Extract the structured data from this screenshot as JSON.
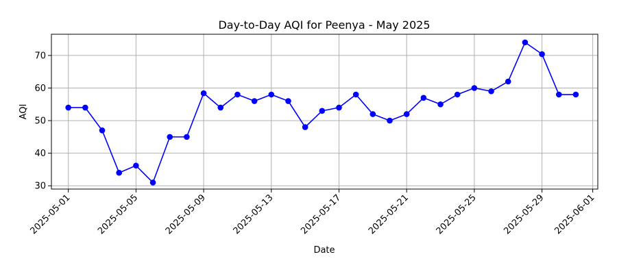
{
  "chart_data": {
    "type": "line",
    "title": "Day-to-Day AQI for Peenya - May 2025",
    "xlabel": "Date",
    "ylabel": "AQI",
    "x": [
      "2025-05-01",
      "2025-05-02",
      "2025-05-03",
      "2025-05-04",
      "2025-05-05",
      "2025-05-06",
      "2025-05-07",
      "2025-05-08",
      "2025-05-09",
      "2025-05-10",
      "2025-05-11",
      "2025-05-12",
      "2025-05-13",
      "2025-05-14",
      "2025-05-15",
      "2025-05-16",
      "2025-05-17",
      "2025-05-18",
      "2025-05-19",
      "2025-05-20",
      "2025-05-21",
      "2025-05-22",
      "2025-05-23",
      "2025-05-24",
      "2025-05-25",
      "2025-05-26",
      "2025-05-27",
      "2025-05-28",
      "2025-05-29",
      "2025-05-30",
      "2025-05-31"
    ],
    "series": [
      {
        "values": [
          54,
          54,
          47,
          34,
          36.2,
          31,
          45,
          45,
          58.4,
          54,
          58,
          56,
          58,
          56,
          48,
          53,
          54,
          58,
          52,
          50,
          52,
          57,
          55,
          58,
          60,
          59,
          62,
          74,
          70.4,
          58,
          58
        ],
        "color": "#0000ff",
        "marker": "circle"
      }
    ],
    "xlim": [
      "2025-04-30",
      "2025-06-01"
    ],
    "ylim": [
      29,
      76.5
    ],
    "x_ticks": [
      "2025-05-01",
      "2025-05-05",
      "2025-05-09",
      "2025-05-13",
      "2025-05-17",
      "2025-05-21",
      "2025-05-25",
      "2025-05-29",
      "2025-06-01"
    ],
    "y_ticks": [
      30,
      40,
      50,
      60,
      70
    ],
    "grid": true,
    "legend": "none"
  }
}
